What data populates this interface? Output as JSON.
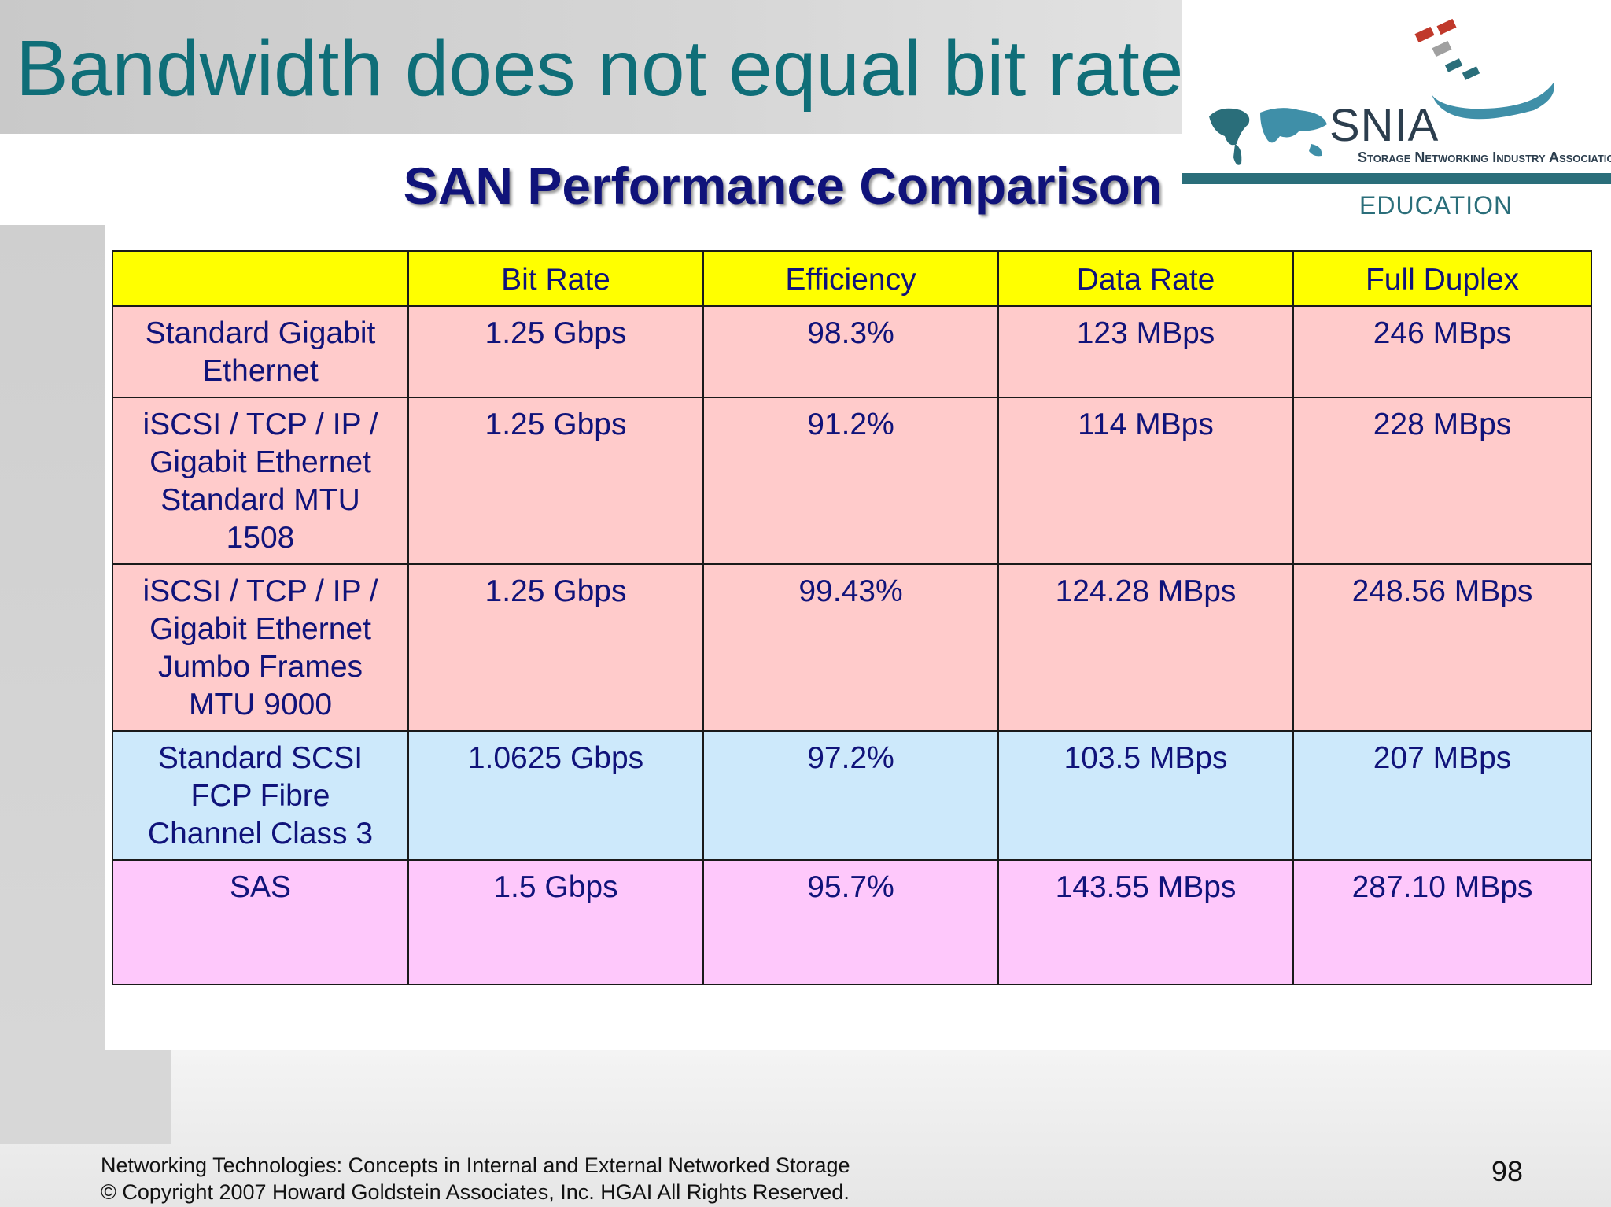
{
  "slide": {
    "title": "Bandwidth does not equal bit rate",
    "subtitle": "SAN Performance Comparison",
    "page_number": "98"
  },
  "logo": {
    "name": "SNIA",
    "full_name": "Storage Networking Industry Association",
    "tagline": "EDUCATION"
  },
  "table": {
    "headers": [
      "",
      "Bit Rate",
      "Efficiency",
      "Data Rate",
      "Full Duplex"
    ],
    "rows": [
      {
        "label": "Standard Gigabit Ethernet",
        "bit_rate": "1.25 Gbps",
        "efficiency": "98.3%",
        "data_rate": "123 MBps",
        "full_duplex": "246 MBps"
      },
      {
        "label": "iSCSI / TCP / IP / Gigabit Ethernet Standard MTU 1508",
        "bit_rate": "1.25 Gbps",
        "efficiency": "91.2%",
        "data_rate": "114 MBps",
        "full_duplex": "228 MBps"
      },
      {
        "label": "iSCSI / TCP / IP / Gigabit Ethernet Jumbo Frames MTU 9000",
        "bit_rate": "1.25 Gbps",
        "efficiency": "99.43%",
        "data_rate": "124.28 MBps",
        "full_duplex": "248.56 MBps"
      },
      {
        "label": "Standard SCSI FCP Fibre Channel Class 3",
        "bit_rate": "1.0625 Gbps",
        "efficiency": "97.2%",
        "data_rate": "103.5 MBps",
        "full_duplex": "207 MBps"
      },
      {
        "label": "SAS",
        "bit_rate": "1.5 Gbps",
        "efficiency": "95.7%",
        "data_rate": "143.55 MBps",
        "full_duplex": "287.10 MBps"
      }
    ]
  },
  "footer": {
    "line1": "Networking Technologies: Concepts in Internal and External Networked Storage",
    "line2": "© Copyright 2007 Howard Goldstein Associates, Inc. HGAI All Rights Reserved."
  }
}
